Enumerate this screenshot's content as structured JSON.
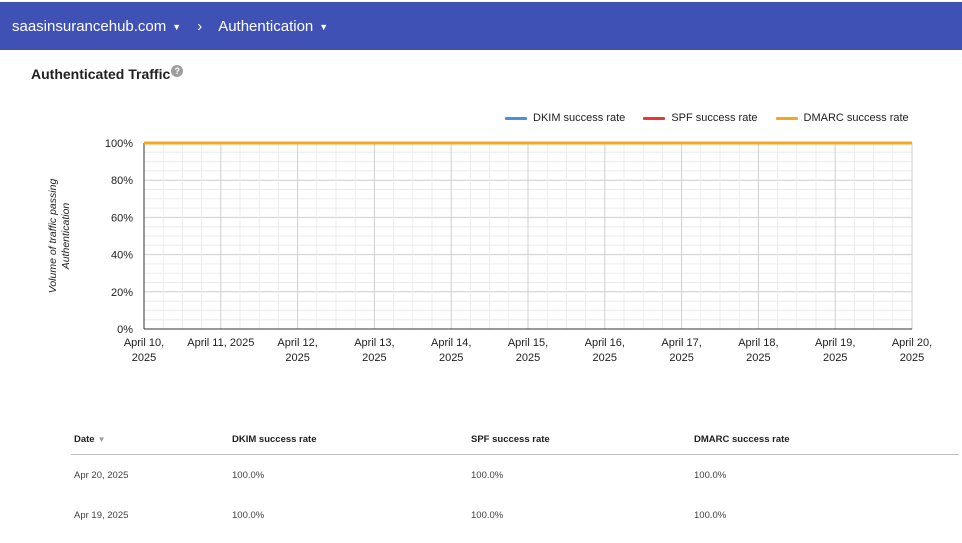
{
  "header": {
    "domain": "saasinsurancehub.com",
    "separator": "›",
    "section": "Authentication"
  },
  "panel": {
    "title": "Authenticated Traffic",
    "help": "?"
  },
  "chart_data": {
    "type": "line",
    "ylabel": [
      "Volume of traffic passing",
      "Authentication"
    ],
    "ylim": [
      0,
      100
    ],
    "yticks": [
      "0%",
      "20%",
      "40%",
      "60%",
      "80%",
      "100%"
    ],
    "categories": [
      [
        "April 10,",
        "2025"
      ],
      [
        "April 11, 2025"
      ],
      [
        "April 12,",
        "2025"
      ],
      [
        "April 13,",
        "2025"
      ],
      [
        "April 14,",
        "2025"
      ],
      [
        "April 15,",
        "2025"
      ],
      [
        "April 16,",
        "2025"
      ],
      [
        "April 17,",
        "2025"
      ],
      [
        "April 18,",
        "2025"
      ],
      [
        "April 19,",
        "2025"
      ],
      [
        "April 20,",
        "2025"
      ]
    ],
    "series": [
      {
        "name": "DKIM success rate",
        "color": "#4a90e2",
        "values": [
          100,
          100,
          100,
          100,
          100,
          100,
          100,
          100,
          100,
          100,
          100
        ]
      },
      {
        "name": "SPF success rate",
        "color": "#e53935",
        "values": [
          100,
          100,
          100,
          100,
          100,
          100,
          100,
          100,
          100,
          100,
          100
        ]
      },
      {
        "name": "DMARC success rate",
        "color": "#f5a623",
        "values": [
          100,
          100,
          100,
          100,
          100,
          100,
          100,
          100,
          100,
          100,
          100
        ]
      }
    ],
    "legend": "top-right",
    "grid": true
  },
  "table": {
    "columns": [
      "Date",
      "DKIM success rate",
      "SPF success rate",
      "DMARC success rate"
    ],
    "sort_indicator": "▼",
    "rows": [
      [
        "Apr 20, 2025",
        "100.0%",
        "100.0%",
        "100.0%"
      ],
      [
        "Apr 19, 2025",
        "100.0%",
        "100.0%",
        "100.0%"
      ]
    ]
  }
}
